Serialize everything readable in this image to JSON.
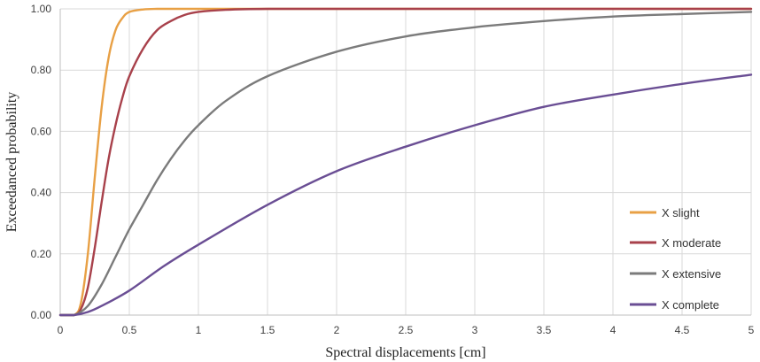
{
  "chart_data": {
    "type": "line",
    "title": "",
    "xlabel": "Spectral displacements [cm]",
    "ylabel": "Exceedanced probability",
    "xlim": [
      0,
      5
    ],
    "ylim": [
      0,
      1
    ],
    "x_ticks": [
      0,
      0.5,
      1,
      1.5,
      2,
      2.5,
      3,
      3.5,
      4,
      4.5,
      5
    ],
    "x_tick_labels": [
      "0",
      "0.5",
      "1",
      "1.5",
      "2",
      "2.5",
      "3",
      "3.5",
      "4",
      "4.5",
      "5"
    ],
    "y_ticks": [
      0,
      0.2,
      0.4,
      0.6,
      0.8,
      1
    ],
    "y_tick_labels": [
      "0.00",
      "0.20",
      "0.40",
      "0.60",
      "0.80",
      "1.00"
    ],
    "grid": "vertical and horizontal",
    "legend_position": "right-bottom",
    "series": [
      {
        "name": "X slight",
        "color": "#E8A045",
        "x": [
          0,
          0.1,
          0.15,
          0.2,
          0.25,
          0.3,
          0.35,
          0.4,
          0.45,
          0.5,
          0.6,
          0.7,
          0.8,
          1,
          1.5,
          2,
          3,
          4,
          5
        ],
        "y": [
          0,
          0,
          0.04,
          0.2,
          0.45,
          0.68,
          0.84,
          0.93,
          0.97,
          0.99,
          0.998,
          1,
          1,
          1,
          1,
          1,
          1,
          1,
          1
        ]
      },
      {
        "name": "X moderate",
        "color": "#A8414B",
        "x": [
          0,
          0.1,
          0.15,
          0.2,
          0.25,
          0.3,
          0.35,
          0.4,
          0.45,
          0.5,
          0.6,
          0.7,
          0.8,
          0.9,
          1,
          1.2,
          1.5,
          2,
          3,
          4,
          5
        ],
        "y": [
          0,
          0,
          0.02,
          0.09,
          0.22,
          0.37,
          0.51,
          0.62,
          0.71,
          0.78,
          0.87,
          0.93,
          0.96,
          0.98,
          0.99,
          0.997,
          1,
          1,
          1,
          1,
          1
        ]
      },
      {
        "name": "X extensive",
        "color": "#7B7B7B",
        "x": [
          0,
          0.1,
          0.2,
          0.3,
          0.4,
          0.5,
          0.6,
          0.7,
          0.8,
          0.9,
          1,
          1.2,
          1.5,
          2,
          2.5,
          3,
          3.5,
          4,
          4.5,
          5
        ],
        "y": [
          0,
          0,
          0.03,
          0.1,
          0.19,
          0.28,
          0.36,
          0.44,
          0.51,
          0.57,
          0.62,
          0.7,
          0.78,
          0.86,
          0.91,
          0.94,
          0.96,
          0.975,
          0.983,
          0.99
        ]
      },
      {
        "name": "X complete",
        "color": "#6A4E94",
        "x": [
          0,
          0.1,
          0.2,
          0.3,
          0.5,
          0.75,
          1,
          1.5,
          2,
          2.5,
          3,
          3.5,
          4,
          4.5,
          5
        ],
        "y": [
          0,
          0,
          0.01,
          0.03,
          0.08,
          0.16,
          0.23,
          0.36,
          0.47,
          0.55,
          0.62,
          0.68,
          0.72,
          0.755,
          0.785
        ]
      }
    ]
  }
}
